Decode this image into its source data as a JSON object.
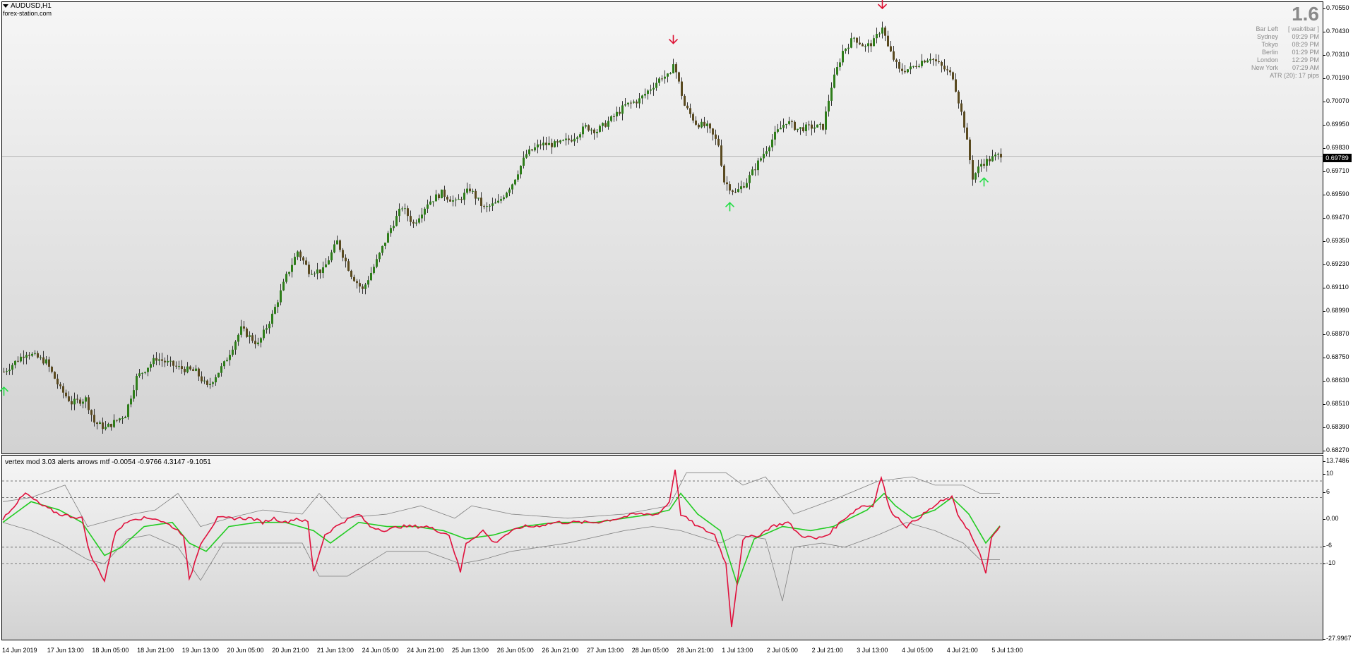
{
  "symbol": "AUDUSD,H1",
  "watermark": "forex-station.com",
  "spread": "1.6",
  "info": [
    {
      "k": "Bar Left",
      "v": "[ wait4bar ]"
    },
    {
      "k": "Sydney",
      "v": "09:29 PM"
    },
    {
      "k": "Tokyo",
      "v": "08:29 PM"
    },
    {
      "k": "Berlin",
      "v": "01:29 PM"
    },
    {
      "k": "London",
      "v": "12:29 PM"
    },
    {
      "k": "New York",
      "v": "07:29 AM"
    }
  ],
  "atr": "ATR (20): 17 pips",
  "current_price": "0.69789",
  "price_axis": [
    "0.70550",
    "0.70430",
    "0.70310",
    "0.70190",
    "0.70070",
    "0.69950",
    "0.69830",
    "0.69710",
    "0.69590",
    "0.69470",
    "0.69350",
    "0.69230",
    "0.69110",
    "0.68990",
    "0.68870",
    "0.68750",
    "0.68630",
    "0.68510",
    "0.68390",
    "0.68270"
  ],
  "indicator": {
    "title": "vertex mod 3.03 alerts arrows mtf -0.0054 -0.9766 4.3147 -9.1051",
    "axis": [
      "13.7486",
      "10",
      "6",
      "0.00",
      "-6",
      "-10",
      "-27.9967"
    ],
    "levels": [
      10,
      6,
      -6,
      -10
    ],
    "colors": {
      "main": "#e0103c",
      "signal": "#22cc22",
      "bands": "#808080"
    }
  },
  "time_axis": [
    "14 Jun 2019",
    "17 Jun 13:00",
    "18 Jun 05:00",
    "18 Jun 21:00",
    "19 Jun 13:00",
    "20 Jun 05:00",
    "20 Jun 21:00",
    "21 Jun 13:00",
    "24 Jun 05:00",
    "24 Jun 21:00",
    "25 Jun 13:00",
    "26 Jun 05:00",
    "26 Jun 21:00",
    "27 Jun 13:00",
    "28 Jun 05:00",
    "28 Jun 21:00",
    "1 Jul 13:00",
    "2 Jul 05:00",
    "2 Jul 21:00",
    "3 Jul 13:00",
    "4 Jul 05:00",
    "4 Jul 21:00",
    "5 Jul 13:00"
  ],
  "colors": {
    "bull": "#2e7d1a",
    "bear": "#5a4a20",
    "arrow_up": "#22dd44",
    "arrow_down": "#dd1133"
  },
  "chart_data": {
    "type": "candlestick",
    "price_ylim": [
      0.6827,
      0.7055
    ],
    "indicator_ylim": [
      -27.9967,
      13.7486
    ],
    "close_path": [
      [
        0,
        0.6868
      ],
      [
        8,
        0.6878
      ],
      [
        15,
        0.6873
      ],
      [
        20,
        0.6859
      ],
      [
        24,
        0.6852
      ],
      [
        29,
        0.6854
      ],
      [
        32,
        0.6842
      ],
      [
        36,
        0.6839
      ],
      [
        43,
        0.6846
      ],
      [
        47,
        0.6865
      ],
      [
        54,
        0.6875
      ],
      [
        62,
        0.687
      ],
      [
        68,
        0.6868
      ],
      [
        72,
        0.686
      ],
      [
        78,
        0.6872
      ],
      [
        84,
        0.689
      ],
      [
        90,
        0.6882
      ],
      [
        95,
        0.6897
      ],
      [
        100,
        0.6917
      ],
      [
        104,
        0.693
      ],
      [
        108,
        0.692
      ],
      [
        113,
        0.692
      ],
      [
        118,
        0.6935
      ],
      [
        123,
        0.6918
      ],
      [
        127,
        0.691
      ],
      [
        132,
        0.6925
      ],
      [
        137,
        0.6942
      ],
      [
        141,
        0.6953
      ],
      [
        145,
        0.6944
      ],
      [
        150,
        0.6955
      ],
      [
        155,
        0.696
      ],
      [
        160,
        0.6955
      ],
      [
        165,
        0.6962
      ],
      [
        170,
        0.6952
      ],
      [
        175,
        0.6955
      ],
      [
        180,
        0.6965
      ],
      [
        185,
        0.698
      ],
      [
        190,
        0.6985
      ],
      [
        196,
        0.6985
      ],
      [
        201,
        0.6988
      ],
      [
        206,
        0.6994
      ],
      [
        210,
        0.6992
      ],
      [
        215,
        0.6998
      ],
      [
        220,
        0.7005
      ],
      [
        225,
        0.7008
      ],
      [
        229,
        0.7014
      ],
      [
        233,
        0.702
      ],
      [
        236,
        0.702
      ],
      [
        237,
        0.7028
      ],
      [
        241,
        0.7005
      ],
      [
        245,
        0.6996
      ],
      [
        249,
        0.6994
      ],
      [
        253,
        0.6985
      ],
      [
        255,
        0.6966
      ],
      [
        259,
        0.696
      ],
      [
        263,
        0.6966
      ],
      [
        268,
        0.6978
      ],
      [
        273,
        0.699
      ],
      [
        277,
        0.6997
      ],
      [
        281,
        0.6993
      ],
      [
        286,
        0.6994
      ],
      [
        290,
        0.6994
      ],
      [
        293,
        0.7015
      ],
      [
        297,
        0.7033
      ],
      [
        301,
        0.704
      ],
      [
        305,
        0.7035
      ],
      [
        308,
        0.7038
      ],
      [
        311,
        0.7046
      ],
      [
        313,
        0.7035
      ],
      [
        317,
        0.7023
      ],
      [
        321,
        0.7024
      ],
      [
        325,
        0.7028
      ],
      [
        328,
        0.703
      ],
      [
        332,
        0.7025
      ],
      [
        336,
        0.702
      ],
      [
        340,
        0.6995
      ],
      [
        343,
        0.6968
      ],
      [
        346,
        0.6975
      ],
      [
        350,
        0.6978
      ],
      [
        353,
        0.698
      ]
    ],
    "signals": {
      "up": [
        0,
        257,
        347
      ],
      "down": [
        237,
        311
      ]
    },
    "indicator_path": [
      [
        0,
        1
      ],
      [
        8,
        7
      ],
      [
        14,
        4
      ],
      [
        20,
        2
      ],
      [
        28,
        1
      ],
      [
        31,
        -8
      ],
      [
        36,
        -14
      ],
      [
        40,
        -2
      ],
      [
        46,
        1
      ],
      [
        54,
        1
      ],
      [
        60,
        -1
      ],
      [
        64,
        -3
      ],
      [
        66,
        -14
      ],
      [
        70,
        -5
      ],
      [
        76,
        1
      ],
      [
        84,
        1
      ],
      [
        88,
        1
      ],
      [
        92,
        0
      ],
      [
        96,
        1
      ],
      [
        100,
        0
      ],
      [
        104,
        1
      ],
      [
        108,
        0
      ],
      [
        110,
        -12
      ],
      [
        114,
        -3
      ],
      [
        120,
        0
      ],
      [
        126,
        2
      ],
      [
        130,
        -1
      ],
      [
        136,
        -2
      ],
      [
        140,
        -1
      ],
      [
        146,
        -1
      ],
      [
        150,
        -1
      ],
      [
        158,
        -3
      ],
      [
        162,
        -12
      ],
      [
        164,
        -5
      ],
      [
        170,
        -2
      ],
      [
        174,
        -5
      ],
      [
        178,
        -3
      ],
      [
        184,
        -1
      ],
      [
        188,
        -1
      ],
      [
        196,
        0
      ],
      [
        204,
        0
      ],
      [
        210,
        0
      ],
      [
        218,
        1
      ],
      [
        224,
        2
      ],
      [
        232,
        2
      ],
      [
        236,
        5
      ],
      [
        238,
        13
      ],
      [
        240,
        2
      ],
      [
        246,
        -1
      ],
      [
        252,
        -3
      ],
      [
        256,
        -10
      ],
      [
        258,
        -25
      ],
      [
        262,
        -4
      ],
      [
        268,
        -3
      ],
      [
        272,
        -1
      ],
      [
        278,
        0
      ],
      [
        282,
        -3
      ],
      [
        288,
        -4
      ],
      [
        292,
        -3
      ],
      [
        298,
        1
      ],
      [
        304,
        4
      ],
      [
        308,
        4
      ],
      [
        311,
        11
      ],
      [
        314,
        3
      ],
      [
        320,
        -1
      ],
      [
        326,
        2
      ],
      [
        332,
        5
      ],
      [
        336,
        6
      ],
      [
        338,
        2
      ],
      [
        342,
        -2
      ],
      [
        346,
        -8
      ],
      [
        348,
        -12
      ],
      [
        350,
        -4
      ],
      [
        354,
        0
      ]
    ],
    "signal_path": [
      [
        0,
        0
      ],
      [
        10,
        5
      ],
      [
        20,
        3
      ],
      [
        28,
        0
      ],
      [
        36,
        -8
      ],
      [
        42,
        -6
      ],
      [
        50,
        -1
      ],
      [
        60,
        0
      ],
      [
        66,
        -5
      ],
      [
        72,
        -7
      ],
      [
        80,
        -1
      ],
      [
        90,
        0
      ],
      [
        100,
        0
      ],
      [
        110,
        -2
      ],
      [
        116,
        -5
      ],
      [
        126,
        0
      ],
      [
        136,
        -1
      ],
      [
        146,
        -1
      ],
      [
        156,
        -2
      ],
      [
        164,
        -4
      ],
      [
        174,
        -3
      ],
      [
        184,
        -1
      ],
      [
        196,
        0
      ],
      [
        210,
        0
      ],
      [
        220,
        1
      ],
      [
        230,
        2
      ],
      [
        236,
        3
      ],
      [
        240,
        7
      ],
      [
        246,
        2
      ],
      [
        254,
        -2
      ],
      [
        260,
        -15
      ],
      [
        266,
        -4
      ],
      [
        276,
        -1
      ],
      [
        286,
        -2
      ],
      [
        294,
        -1
      ],
      [
        300,
        1
      ],
      [
        306,
        3
      ],
      [
        312,
        7
      ],
      [
        316,
        4
      ],
      [
        322,
        1
      ],
      [
        330,
        3
      ],
      [
        336,
        6
      ],
      [
        342,
        2
      ],
      [
        348,
        -5
      ],
      [
        354,
        0
      ]
    ],
    "upper_band_path": [
      [
        0,
        5
      ],
      [
        10,
        6
      ],
      [
        22,
        9
      ],
      [
        30,
        -1
      ],
      [
        46,
        2
      ],
      [
        54,
        3
      ],
      [
        62,
        7
      ],
      [
        70,
        -1
      ],
      [
        80,
        1
      ],
      [
        92,
        3
      ],
      [
        106,
        2
      ],
      [
        112,
        7
      ],
      [
        120,
        1
      ],
      [
        136,
        2
      ],
      [
        148,
        4
      ],
      [
        160,
        1
      ],
      [
        166,
        4
      ],
      [
        180,
        2
      ],
      [
        200,
        1
      ],
      [
        220,
        2
      ],
      [
        236,
        4
      ],
      [
        242,
        12
      ],
      [
        256,
        12
      ],
      [
        262,
        9
      ],
      [
        270,
        11
      ],
      [
        280,
        2
      ],
      [
        296,
        6
      ],
      [
        310,
        10
      ],
      [
        322,
        11
      ],
      [
        330,
        9
      ],
      [
        340,
        9
      ],
      [
        346,
        7
      ],
      [
        354,
        7
      ]
    ],
    "lower_band_path": [
      [
        0,
        0
      ],
      [
        10,
        -2
      ],
      [
        20,
        -5
      ],
      [
        30,
        -9
      ],
      [
        36,
        -10
      ],
      [
        44,
        -4
      ],
      [
        52,
        -3
      ],
      [
        62,
        -6
      ],
      [
        70,
        -14
      ],
      [
        78,
        -5
      ],
      [
        96,
        -5
      ],
      [
        106,
        -5
      ],
      [
        112,
        -13
      ],
      [
        122,
        -13
      ],
      [
        136,
        -7
      ],
      [
        150,
        -7
      ],
      [
        162,
        -10
      ],
      [
        170,
        -9
      ],
      [
        180,
        -7
      ],
      [
        200,
        -5
      ],
      [
        220,
        -2
      ],
      [
        230,
        -1
      ],
      [
        240,
        -2
      ],
      [
        254,
        -5
      ],
      [
        260,
        -3
      ],
      [
        270,
        -4
      ],
      [
        276,
        -19
      ],
      [
        280,
        -6
      ],
      [
        290,
        -5
      ],
      [
        298,
        -6
      ],
      [
        310,
        -3
      ],
      [
        320,
        0
      ],
      [
        330,
        -2
      ],
      [
        340,
        -5
      ],
      [
        346,
        -9
      ],
      [
        354,
        -9
      ]
    ]
  }
}
